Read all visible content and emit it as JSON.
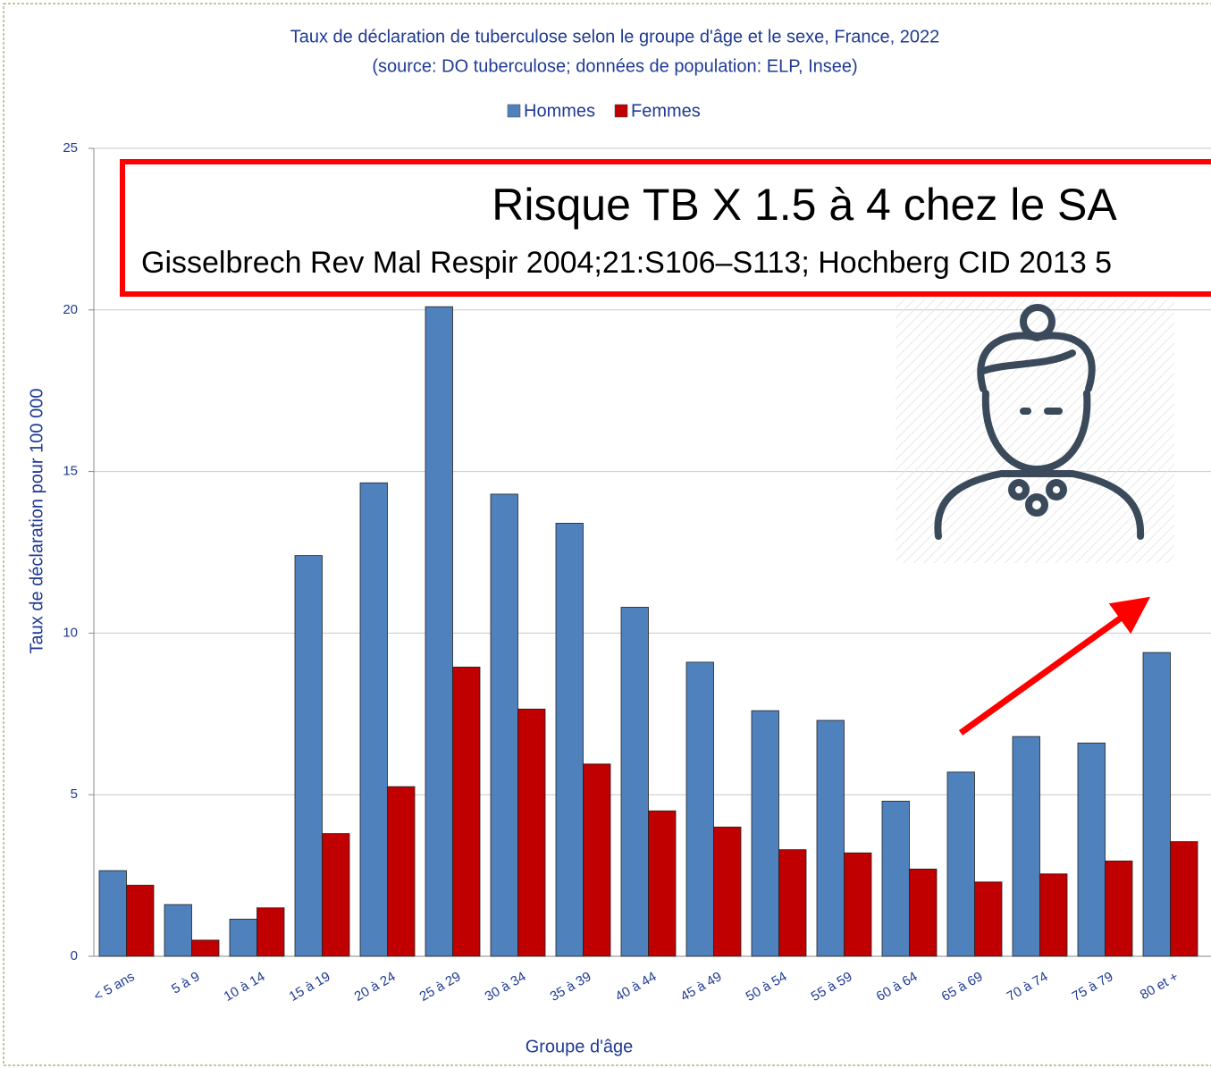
{
  "chart_data": {
    "type": "bar",
    "title": "Taux de déclaration de tuberculose selon le groupe d'âge et le sexe, France, 2022",
    "subtitle": "(source: DO tuberculose; données de population: ELP, Insee)",
    "x_label": "Groupe d'âge",
    "y_label": "Taux de déclaration pour 100 000",
    "categories": [
      "< 5 ans",
      "5 à 9",
      "10 à 14",
      "15 à 19",
      "20 à 24",
      "25 à 29",
      "30 à 34",
      "35 à 39",
      "40 à 44",
      "45 à 49",
      "50 à 54",
      "55 à 59",
      "60 à 64",
      "65 à 69",
      "70 à 74",
      "75 à 79",
      "80  et +"
    ],
    "series": [
      {
        "name": "Hommes",
        "color": "#4f81bd",
        "values": [
          2.65,
          1.6,
          1.15,
          12.4,
          14.65,
          20.1,
          14.3,
          13.4,
          10.8,
          9.1,
          7.6,
          7.3,
          4.8,
          5.7,
          6.8,
          6.6,
          9.4
        ]
      },
      {
        "name": "Femmes",
        "color": "#c00000",
        "values": [
          2.2,
          0.5,
          1.5,
          3.8,
          5.25,
          8.95,
          7.65,
          5.95,
          4.5,
          4.0,
          3.3,
          3.2,
          2.7,
          2.3,
          2.55,
          2.95,
          3.55
        ]
      }
    ],
    "ylim": [
      0,
      25
    ],
    "yticks": [
      0,
      5,
      10,
      15,
      20,
      25
    ],
    "grid": true,
    "legend": "top",
    "annotations": {
      "headline": "Risque TB X 1.5 à 4 chez le SA",
      "reference": "Gisselbrech Rev Mal Respir 2004;21:S106–S113; Hochberg CID 2013 5"
    }
  }
}
